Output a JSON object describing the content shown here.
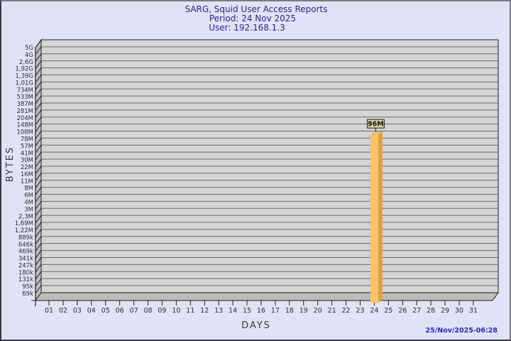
{
  "window": {
    "background": "#e1e2f5",
    "border_dark": "#3a3a44",
    "border_light": "#7b7b86"
  },
  "header": {
    "title": "SARG, Squid User Access Reports",
    "period": "Period: 24 Nov 2025",
    "user": "User: 192.168.1.3",
    "text_color": "#28288c"
  },
  "footer": {
    "generated_timestamp": "25/Nov/2025-06:28",
    "text_color": "#2b2bc0"
  },
  "chart_data": {
    "type": "bar",
    "title": "SARG, Squid User Access Reports",
    "subtitle": [
      "Period: 24 Nov 2025",
      "User: 192.168.1.3"
    ],
    "xlabel": "DAYS",
    "ylabel": "BYTES",
    "x_categories": [
      "01",
      "02",
      "03",
      "04",
      "05",
      "06",
      "07",
      "08",
      "09",
      "10",
      "11",
      "12",
      "13",
      "14",
      "15",
      "16",
      "17",
      "18",
      "19",
      "20",
      "21",
      "22",
      "23",
      "24",
      "25",
      "26",
      "27",
      "28",
      "29",
      "30",
      "31"
    ],
    "y_tick_labels": [
      "5G",
      "4G",
      "2,6G",
      "1,92G",
      "1,39G",
      "1,01G",
      "734M",
      "533M",
      "387M",
      "281M",
      "204M",
      "148M",
      "108M",
      "78M",
      "57M",
      "41M",
      "30M",
      "22M",
      "16M",
      "11M",
      "8M",
      "6M",
      "4M",
      "3M",
      "2,3M",
      "1,69M",
      "1,22M",
      "889k",
      "646k",
      "469k",
      "341k",
      "247k",
      "180k",
      "131k",
      "95k",
      "69k"
    ],
    "y_scale": "log",
    "y_top_value": 5000000000,
    "y_bottom_value": 69000,
    "grid": true,
    "legend": "none",
    "values": [
      0,
      0,
      0,
      0,
      0,
      0,
      0,
      0,
      0,
      0,
      0,
      0,
      0,
      0,
      0,
      0,
      0,
      0,
      0,
      0,
      0,
      0,
      0,
      96000000,
      0,
      0,
      0,
      0,
      0,
      0,
      0
    ],
    "value_labels": [
      null,
      null,
      null,
      null,
      null,
      null,
      null,
      null,
      null,
      null,
      null,
      null,
      null,
      null,
      null,
      null,
      null,
      null,
      null,
      null,
      null,
      null,
      null,
      "96M",
      null,
      null,
      null,
      null,
      null,
      null,
      null
    ],
    "colors": {
      "plot_bg": "#d5d5d5",
      "wall": "#bdbdbd",
      "gridline": "#6a6a6a",
      "edge": "#1f1f1f",
      "tick_text": "#2e2e2e",
      "bar_front": "#fcc36b",
      "bar_side": "#d9a348",
      "bar_top": "#f2bb5e",
      "value_box_bg": "#d8d89c",
      "value_box_border": "#1a1a1a",
      "value_text": "#111111"
    }
  }
}
